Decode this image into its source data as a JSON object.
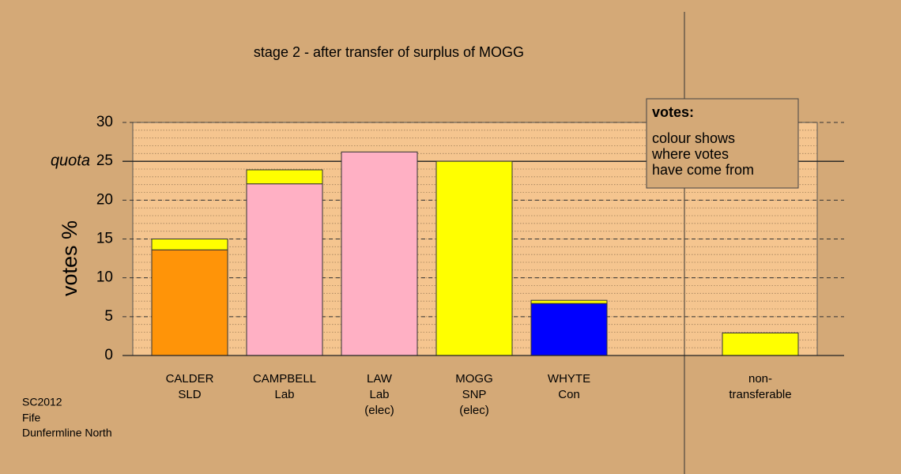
{
  "chart_data": {
    "type": "stacked_bar",
    "title": "stage 2 - after transfer of surplus of MOGG",
    "y_label": "votes %",
    "categories": [
      [
        "CALDER",
        "SLD"
      ],
      [
        "CAMPBELL",
        "Lab"
      ],
      [
        "LAW",
        "Lab",
        "(elec)"
      ],
      [
        "MOGG",
        "SNP",
        "(elec)"
      ],
      [
        "WHYTE",
        "Con"
      ],
      [
        "non-",
        "transferable"
      ]
    ],
    "series": [
      {
        "colors": [
          "#ff9408",
          "#ffb0c4",
          "#ffb0c4",
          "#ffff00",
          "#0000ff",
          null
        ],
        "values": [
          13.6,
          22.1,
          26.2,
          25,
          6.7,
          null
        ]
      },
      {
        "color": "#ffff00",
        "values": [
          1.4,
          1.8,
          null,
          null,
          0.4,
          2.9
        ]
      }
    ],
    "ylim": [
      0,
      30
    ],
    "yticks": [
      0,
      5,
      10,
      15,
      20,
      25,
      30
    ],
    "minor_tick_step": 1,
    "quota": {
      "value": 25,
      "label": "quota"
    },
    "legend": {
      "title": "votes:",
      "lines": [
        "colour shows",
        "where votes",
        "have come from"
      ]
    },
    "footnote": [
      "SC2012",
      "Fife",
      "Dunfermline North"
    ]
  }
}
